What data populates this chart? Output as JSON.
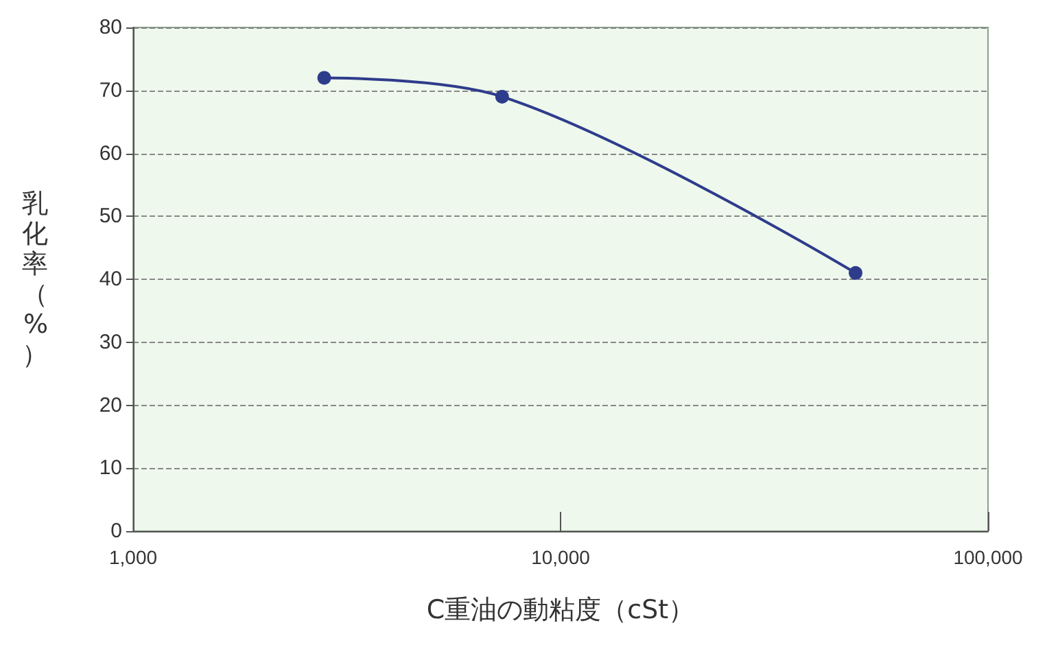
{
  "chart_data": {
    "type": "line",
    "xlabel": "C重油の動粘度（cSt）",
    "ylabel": "乳化率（%）",
    "x": [
      2800,
      7300,
      49000
    ],
    "series": [
      {
        "color": "#2e3c8c",
        "values": [
          72,
          69,
          41
        ]
      }
    ],
    "log": "x",
    "xlim": [
      1000,
      100000
    ],
    "xticks": [
      {
        "value": 1000,
        "label": "1,000"
      },
      {
        "value": 10000,
        "label": "10,000"
      },
      {
        "value": 100000,
        "label": "100,000"
      }
    ],
    "ylim": [
      0,
      80
    ],
    "yticks": [
      0,
      10,
      20,
      30,
      40,
      50,
      60,
      70,
      80
    ],
    "grid": "y",
    "marker": "circle",
    "line_style": "solid"
  }
}
